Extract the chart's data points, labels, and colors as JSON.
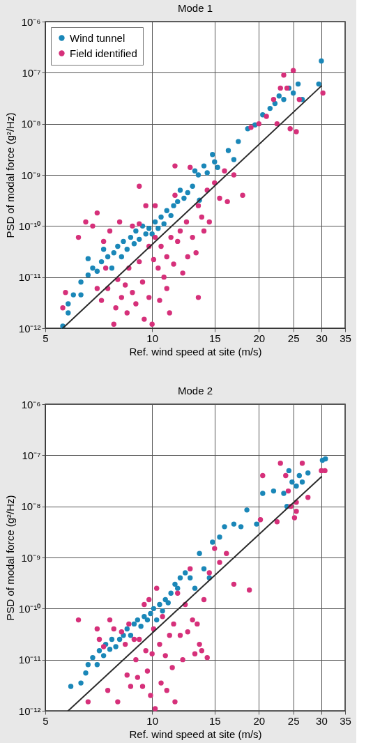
{
  "chart_data": [
    {
      "type": "scatter",
      "title": "Mode 1",
      "xlabel": "Ref. wind speed at site (m/s)",
      "ylabel": "PSD of modal force (g²/Hz)",
      "log": "xy",
      "grid": true,
      "legend": "top left",
      "marker": "circle",
      "xlim": [
        5,
        35
      ],
      "xticks": [
        5,
        10,
        15,
        20,
        25,
        30,
        35
      ],
      "ylim": [
        1e-12,
        1e-06
      ],
      "yticks": [
        {
          "value": 1e-12,
          "label": "10⁻¹²"
        },
        {
          "value": 1e-11,
          "label": "10⁻¹¹"
        },
        {
          "value": 1e-10,
          "label": "10⁻¹⁰"
        },
        {
          "value": 1e-09,
          "label": "10⁻⁹"
        },
        {
          "value": 1e-08,
          "label": "10⁻⁸"
        },
        {
          "value": 1e-07,
          "label": "10⁻⁷"
        },
        {
          "value": 1e-06,
          "label": "10⁻⁶"
        }
      ],
      "series": [
        {
          "name": "Wind tunnel",
          "color": "#1a87b8",
          "x": [
            5.6,
            5.8,
            5.8,
            6.0,
            6.3,
            6.3,
            6.6,
            6.8,
            6.6,
            7.0,
            7.2,
            7.3,
            7.5,
            7.7,
            7.8,
            8.0,
            8.2,
            8.3,
            8.5,
            8.7,
            8.9,
            9.0,
            9.2,
            9.4,
            9.6,
            9.8,
            10.0,
            10.2,
            10.4,
            10.6,
            10.8,
            11.0,
            11.3,
            11.5,
            11.8,
            12.0,
            12.3,
            12.6,
            13.0,
            13.2,
            13.5,
            13.6,
            14.0,
            14.3,
            14.8,
            15.0,
            15.3,
            16.4,
            17.0,
            17.5,
            18.6,
            19.5,
            20.5,
            21.5,
            22.2,
            22.8,
            23.5,
            24.3,
            25.0,
            25.8,
            26.5,
            29.5,
            30.0
          ],
          "values": [
            1.1e-12,
            2e-12,
            3e-12,
            4.5e-12,
            4.5e-12,
            8e-12,
            1.1e-11,
            1.5e-11,
            2.3e-11,
            1.3e-11,
            2e-11,
            3.5e-11,
            2.5e-11,
            1.5e-11,
            3e-11,
            4e-11,
            2.5e-11,
            5e-11,
            3.5e-11,
            6e-11,
            4.5e-11,
            8e-11,
            5.5e-11,
            1e-10,
            7e-11,
            9e-11,
            7e-11,
            1.2e-10,
            9e-11,
            1.5e-10,
            1.1e-10,
            2e-10,
            1.6e-10,
            2.5e-10,
            3e-10,
            5e-10,
            3.5e-10,
            4.5e-10,
            6e-10,
            1.2e-09,
            1e-09,
            3.2e-10,
            1.5e-09,
            1.1e-09,
            2.5e-09,
            1.8e-09,
            1.4e-09,
            3e-09,
            2e-09,
            4.5e-09,
            8e-09,
            9.5e-09,
            1.5e-08,
            2e-08,
            2.5e-08,
            3.5e-08,
            3e-08,
            5e-08,
            4e-08,
            6e-08,
            3e-08,
            6e-08,
            1.7e-07
          ]
        },
        {
          "name": "Field identified",
          "color": "#d6307a",
          "x": [
            5.6,
            5.7,
            6.2,
            6.5,
            6.8,
            7.0,
            7.0,
            7.2,
            7.4,
            7.3,
            7.6,
            7.5,
            7.8,
            7.9,
            8.0,
            8.2,
            8.1,
            8.4,
            8.5,
            8.6,
            8.8,
            8.8,
            9.0,
            9.2,
            9.2,
            9.4,
            9.5,
            9.6,
            9.8,
            9.8,
            10.0,
            10.1,
            10.2,
            10.4,
            10.5,
            10.6,
            10.8,
            11.0,
            11.0,
            11.2,
            11.5,
            11.3,
            11.6,
            11.8,
            12.0,
            12.2,
            12.5,
            12.6,
            12.8,
            13.0,
            13.3,
            13.5,
            13.5,
            13.8,
            14.0,
            14.3,
            14.5,
            15.0,
            15.5,
            16.0,
            16.3,
            17.0,
            18.0,
            19.0,
            20.0,
            21.0,
            22.0,
            22.5,
            23.0,
            23.5,
            24.0,
            24.5,
            25.0,
            25.5,
            26.0,
            30.3,
            10.2,
            9.2,
            11.6
          ],
          "values": [
            2.5e-12,
            5e-12,
            6e-11,
            1.2e-10,
            1e-10,
            1.8e-10,
            6e-12,
            3.5e-12,
            1.5e-11,
            5e-11,
            8e-11,
            6e-12,
            1.2e-12,
            2.5e-12,
            9e-12,
            4e-12,
            1.2e-10,
            7e-12,
            2e-12,
            1.5e-11,
            1e-10,
            5e-12,
            3e-12,
            2e-11,
            1.1e-10,
            8e-12,
            1.5e-12,
            2.5e-10,
            4e-11,
            4e-12,
            1.2e-12,
            2.2e-11,
            6e-11,
            1.5e-11,
            3.5e-12,
            4e-11,
            1e-11,
            2.5e-11,
            6e-12,
            2e-12,
            1.8e-11,
            6e-11,
            4e-10,
            5e-11,
            8e-11,
            1.2e-11,
            1.2e-10,
            2.5e-11,
            1.4e-09,
            6e-11,
            3e-11,
            2.5e-10,
            4e-12,
            1.5e-10,
            8e-11,
            5e-10,
            1.2e-10,
            7e-10,
            3.5e-10,
            1.2e-09,
            3e-10,
            1e-09,
            4e-10,
            8.5e-09,
            1e-08,
            1.4e-08,
            3e-08,
            1e-08,
            5e-08,
            9e-08,
            5e-08,
            8e-09,
            1.1e-07,
            7e-09,
            3e-08,
            4e-08,
            2.5e-10,
            6e-10,
            1.5e-09
          ]
        },
        {
          "type": "line",
          "marker": "none",
          "line_style": "solid",
          "color": "#2b2b2b",
          "x": [
            5.6,
            30
          ],
          "values": [
            1e-12,
            5.5e-08
          ]
        }
      ]
    },
    {
      "type": "scatter",
      "title": "Mode 2",
      "xlabel": "Ref. wind speed at site (m/s)",
      "ylabel": "PSD of modal force (g²/Hz)",
      "log": "xy",
      "grid": true,
      "marker": "circle",
      "xlim": [
        5,
        35
      ],
      "xticks": [
        5,
        10,
        15,
        20,
        25,
        30,
        35
      ],
      "ylim": [
        1e-12,
        1e-06
      ],
      "yticks": [
        {
          "value": 1e-12,
          "label": "10⁻¹²"
        },
        {
          "value": 1e-11,
          "label": "10⁻¹¹"
        },
        {
          "value": 1e-10,
          "label": "10⁻¹⁰"
        },
        {
          "value": 1e-09,
          "label": "10⁻⁹"
        },
        {
          "value": 1e-08,
          "label": "10⁻⁸"
        },
        {
          "value": 1e-07,
          "label": "10⁻⁷"
        },
        {
          "value": 1e-06,
          "label": "10⁻⁶"
        }
      ],
      "series": [
        {
          "color": "#1a87b8",
          "x": [
            5.9,
            6.3,
            6.5,
            6.6,
            6.8,
            7.0,
            7.1,
            7.3,
            7.4,
            7.6,
            7.7,
            7.9,
            8.1,
            8.3,
            8.5,
            8.7,
            8.9,
            9.1,
            9.3,
            9.5,
            9.7,
            9.9,
            10.1,
            10.3,
            10.5,
            10.7,
            10.9,
            11.1,
            11.3,
            11.6,
            11.8,
            12.0,
            12.4,
            12.8,
            13.2,
            13.6,
            14.0,
            14.5,
            14.8,
            15.5,
            16.0,
            17.0,
            17.8,
            18.5,
            19.7,
            20.5,
            22.0,
            23.5,
            24.0,
            24.3,
            24.8,
            25.5,
            26.0,
            26.5,
            27.5,
            30.2,
            30.8
          ],
          "values": [
            3e-12,
            3.5e-12,
            5.5e-12,
            8e-12,
            1.1e-11,
            8e-12,
            1.5e-11,
            1.2e-11,
            2e-11,
            1.6e-11,
            2.5e-11,
            1.8e-11,
            2.5e-11,
            3e-11,
            4e-11,
            3e-11,
            5e-11,
            6e-11,
            4.5e-11,
            7e-11,
            6e-11,
            8e-11,
            1e-10,
            6e-11,
            1.2e-10,
            9e-11,
            1.5e-10,
            1.3e-10,
            2e-10,
            3e-10,
            2.5e-10,
            4e-10,
            5e-10,
            4e-10,
            2.5e-10,
            1.2e-09,
            6e-10,
            4e-10,
            2e-09,
            2.5e-09,
            4e-09,
            4.5e-09,
            4e-09,
            8.5e-09,
            4.5e-09,
            1.8e-08,
            2e-08,
            1.8e-08,
            1e-08,
            5e-08,
            3e-08,
            2.5e-08,
            4e-08,
            3e-08,
            4.5e-08,
            8e-08,
            8.5e-08
          ]
        },
        {
          "color": "#d6307a",
          "x": [
            6.2,
            6.6,
            7.0,
            7.1,
            7.3,
            7.5,
            7.6,
            7.8,
            8.0,
            8.2,
            8.4,
            8.5,
            8.6,
            8.7,
            8.9,
            9.0,
            9.1,
            9.2,
            9.4,
            9.5,
            9.6,
            9.7,
            9.8,
            9.9,
            10.0,
            10.1,
            10.2,
            10.3,
            10.5,
            10.6,
            10.7,
            10.9,
            11.0,
            11.2,
            11.4,
            11.5,
            11.6,
            11.8,
            12.0,
            12.2,
            12.4,
            12.6,
            12.8,
            13.0,
            13.2,
            13.4,
            13.6,
            13.8,
            14.0,
            14.3,
            14.5,
            15.0,
            15.5,
            16.2,
            17.0,
            18.8,
            20.2,
            20.5,
            22.5,
            23.0,
            23.8,
            24.2,
            24.6,
            25.2,
            25.5,
            25.5,
            26.5,
            27.5,
            30.0,
            30.7
          ],
          "values": [
            6e-11,
            1.5e-12,
            4e-11,
            2.5e-11,
            1.8e-11,
            2.5e-12,
            6e-11,
            4e-11,
            1.5e-12,
            3.5e-11,
            2e-11,
            5e-12,
            5e-11,
            3e-12,
            2.5e-11,
            1e-11,
            4.5e-12,
            2.5e-11,
            3e-12,
            1.2e-10,
            1.5e-11,
            6e-12,
            1.5e-10,
            2e-12,
            1.3e-11,
            4e-11,
            1.1e-12,
            2.5e-10,
            2e-11,
            3.5e-12,
            7e-11,
            1.2e-11,
            2.5e-12,
            3e-11,
            7e-12,
            5e-11,
            1.5e-12,
            2e-10,
            3e-11,
            1e-11,
            1.2e-10,
            3.5e-11,
            6e-10,
            6e-11,
            1.3e-11,
            5e-11,
            2e-11,
            1.5e-11,
            1.5e-10,
            1.1e-11,
            5e-10,
            1.5e-09,
            8e-10,
            1.2e-09,
            3e-10,
            2.3e-10,
            5.5e-09,
            4e-08,
            5e-09,
            7e-08,
            4e-08,
            2e-08,
            1e-08,
            6e-09,
            8e-09,
            1.2e-08,
            7e-08,
            1.5e-08,
            5e-08,
            5e-08
          ]
        },
        {
          "type": "line",
          "marker": "none",
          "line_style": "solid",
          "color": "#2b2b2b",
          "x": [
            5.8,
            30
          ],
          "values": [
            1e-12,
            3.8e-08
          ]
        }
      ]
    }
  ]
}
